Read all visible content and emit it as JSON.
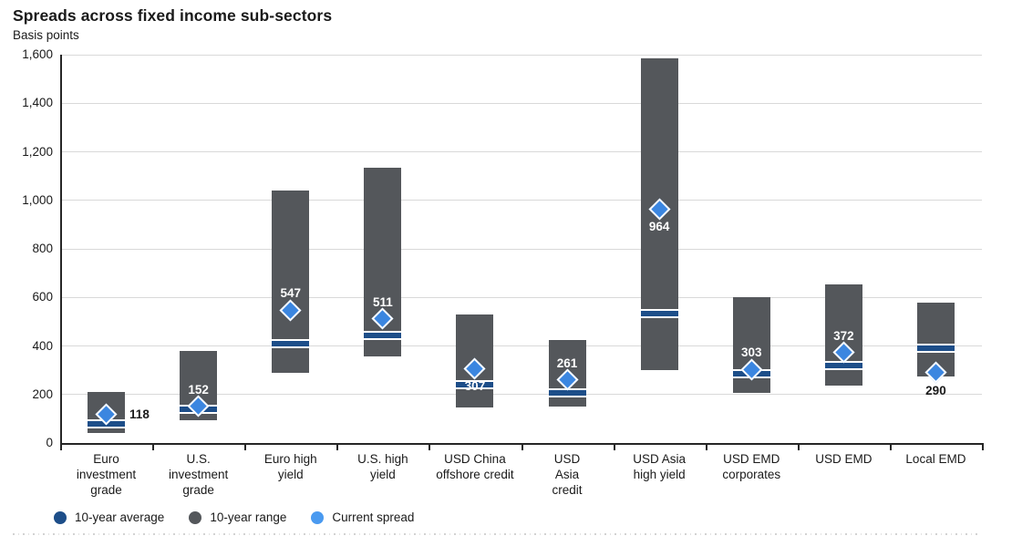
{
  "title": "Spreads across fixed income sub-sectors",
  "subtitle": "Basis points",
  "colors": {
    "range_bar": "#54575b",
    "average_marker": "#1d4e89",
    "current_marker": "#3b86e0",
    "legend_current": "#4a9af0",
    "grid_line": "#d9d9d9",
    "axis_line": "#262626",
    "text_dark": "#1a1a1a",
    "text_light": "#ffffff"
  },
  "chart_data": {
    "type": "bar",
    "subtype": "floating-range-bars-with-markers",
    "title": "Spreads across fixed income sub-sectors",
    "ylabel": "Basis points",
    "ylim": [
      0,
      1600
    ],
    "ystep": 200,
    "ytick_labels": [
      "0",
      "200",
      "400",
      "600",
      "800",
      "1,000",
      "1,200",
      "1,400",
      "1,600"
    ],
    "grid": true,
    "legend_position": "bottom-left",
    "categories": [
      "Euro investment grade",
      "U.S. investment grade",
      "Euro high yield",
      "U.S. high yield",
      "USD China offshore credit",
      "USD Asia credit",
      "USD Asia high yield",
      "USD EMD corporates",
      "USD EMD",
      "Local EMD"
    ],
    "category_lines": [
      [
        "Euro",
        "investment",
        "grade"
      ],
      [
        "U.S.",
        "investment",
        "grade"
      ],
      [
        "Euro high",
        "yield"
      ],
      [
        "U.S. high",
        "yield"
      ],
      [
        "USD China",
        "offshore credit"
      ],
      [
        "USD",
        "Asia",
        "credit"
      ],
      [
        "USD Asia",
        "high yield"
      ],
      [
        "USD EMD",
        "corporates"
      ],
      [
        "USD EMD"
      ],
      [
        "Local EMD"
      ]
    ],
    "series": [
      {
        "name": "10-year range",
        "role": "range",
        "low": [
          40,
          95,
          290,
          355,
          145,
          150,
          300,
          205,
          235,
          275
        ],
        "high": [
          210,
          380,
          1040,
          1135,
          530,
          425,
          1585,
          600,
          655,
          580
        ]
      },
      {
        "name": "10-year average",
        "role": "average",
        "values": [
          80,
          140,
          410,
          445,
          240,
          205,
          535,
          285,
          320,
          390
        ]
      },
      {
        "name": "Current spread",
        "role": "current",
        "values": [
          118,
          152,
          547,
          511,
          307,
          261,
          964,
          303,
          372,
          290
        ],
        "data_labels": [
          {
            "text": "118",
            "placement": "right",
            "color": "dark"
          },
          {
            "text": "152",
            "placement": "above",
            "color": "light"
          },
          {
            "text": "547",
            "placement": "above",
            "color": "light"
          },
          {
            "text": "511",
            "placement": "above",
            "color": "light"
          },
          {
            "text": "307",
            "placement": "below",
            "color": "light"
          },
          {
            "text": "261",
            "placement": "above",
            "color": "light"
          },
          {
            "text": "964",
            "placement": "below",
            "color": "light"
          },
          {
            "text": "303",
            "placement": "above",
            "color": "light"
          },
          {
            "text": "372",
            "placement": "above",
            "color": "light"
          },
          {
            "text": "290",
            "placement": "below-bar",
            "color": "dark"
          }
        ]
      }
    ]
  },
  "legend": {
    "items": [
      {
        "label": "10-year average",
        "color": "#1d4e89"
      },
      {
        "label": "10-year range",
        "color": "#54575b"
      },
      {
        "label": "Current spread",
        "color": "#4a9af0"
      }
    ]
  }
}
